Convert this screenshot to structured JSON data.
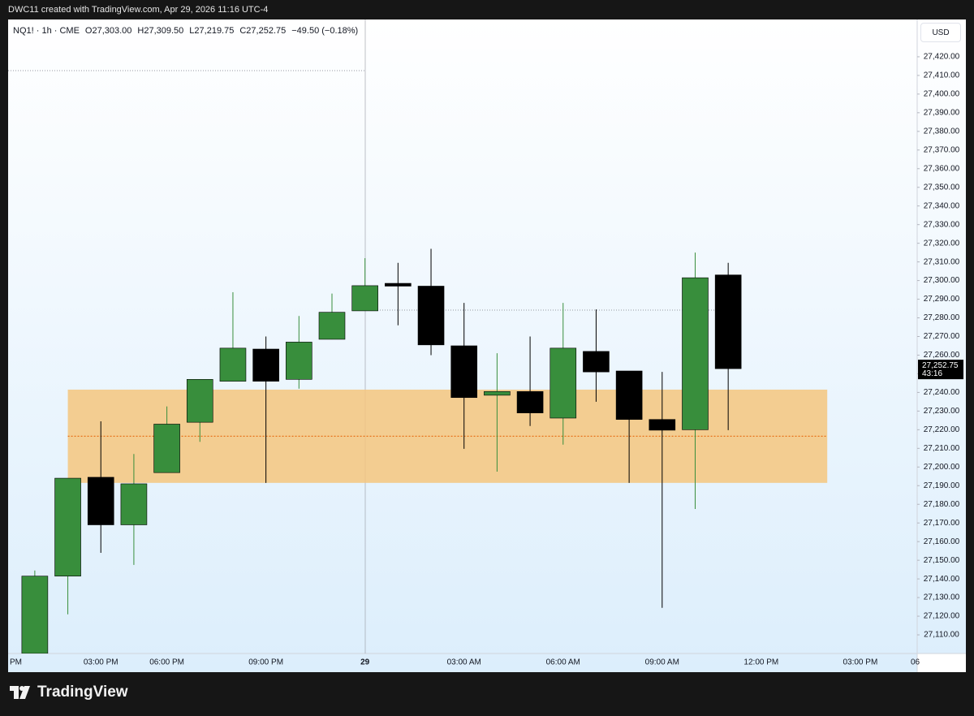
{
  "header": {
    "caption": "DWC11 created with TradingView.com, Apr 29, 2026 11:16 UTC-4"
  },
  "footer": {
    "brand": "TradingView"
  },
  "chart_data": {
    "type": "candlestick",
    "symbol": "NQ1! · 1h · CME",
    "legend_values": [
      "O27,303.00",
      "H27,309.50",
      "L27,219.75",
      "C27,252.75",
      "−49.50 (−0.18%)"
    ],
    "currency": "USD",
    "categories": [
      "PM",
      null,
      null,
      "03:00 PM",
      null,
      "06:00 PM",
      null,
      null,
      "09:00 PM",
      null,
      null,
      "29",
      null,
      null,
      "03:00 AM",
      null,
      null,
      "06:00 AM",
      null,
      null,
      "09:00 AM",
      null,
      null,
      "12:00 PM",
      null,
      null,
      "03:00 PM",
      null,
      "06"
    ],
    "series": [
      {
        "up_color": "#388e3c",
        "down_color": "#000000",
        "open": [
          null,
          27100,
          27141.5,
          27194.5,
          27169,
          27197,
          27224,
          27246,
          27263.25,
          27247,
          27268.5,
          27283.75,
          27298.5,
          27297,
          27265,
          27238.5,
          27240.5,
          27226.25,
          27262,
          27251.5,
          27225.5,
          27220,
          27303,
          null,
          null,
          null,
          null,
          null,
          null
        ],
        "high": [
          null,
          27144.5,
          27194,
          27224.5,
          27207,
          27232.5,
          27247,
          27293.75,
          27270,
          27281,
          27293,
          27312,
          27309.5,
          27317,
          27288,
          27261,
          27270,
          27288,
          27284.5,
          27251.5,
          27251,
          27315,
          27309.5,
          null,
          null,
          null,
          null,
          null,
          null
        ],
        "low": [
          null,
          27100,
          27121,
          27154,
          27147.5,
          27197,
          27213.5,
          27246,
          27191.5,
          27242,
          27268.5,
          27283.75,
          27276,
          27260,
          27209.75,
          27197.5,
          27222,
          27212,
          27235,
          27191.5,
          27124.5,
          27177.5,
          27219.75,
          null,
          null,
          null,
          null,
          null,
          null
        ],
        "close": [
          null,
          27141.5,
          27194,
          27169,
          27191,
          27223,
          27247,
          27263.75,
          27246,
          27267,
          27283,
          27297.25,
          27297,
          27265.5,
          27237.25,
          27240.5,
          27229,
          27263.75,
          27251,
          27225.5,
          27219.75,
          27301.5,
          27252.75,
          null,
          null,
          null,
          null,
          null,
          null
        ]
      }
    ],
    "zone": {
      "top": 27241.5,
      "bottom": 27191.5,
      "mid": 27216.5,
      "start": 2,
      "end": 25,
      "color": "#f5c57e",
      "line_color": "#e8741c"
    },
    "last_price": {
      "value": 27252.75,
      "label": "27,252.75",
      "countdown": "43:16"
    },
    "ylim": [
      27100,
      27440
    ],
    "yticks": [
      {
        "value": 27110,
        "label": "27,110.00"
      },
      {
        "value": 27120,
        "label": "27,120.00"
      },
      {
        "value": 27130,
        "label": "27,130.00"
      },
      {
        "value": 27140,
        "label": "27,140.00"
      },
      {
        "value": 27150,
        "label": "27,150.00"
      },
      {
        "value": 27160,
        "label": "27,160.00"
      },
      {
        "value": 27170,
        "label": "27,170.00"
      },
      {
        "value": 27180,
        "label": "27,180.00"
      },
      {
        "value": 27190,
        "label": "27,190.00"
      },
      {
        "value": 27200,
        "label": "27,200.00"
      },
      {
        "value": 27210,
        "label": "27,210.00"
      },
      {
        "value": 27220,
        "label": "27,220.00"
      },
      {
        "value": 27230,
        "label": "27,230.00"
      },
      {
        "value": 27240,
        "label": "27,240.00"
      },
      {
        "value": 27250,
        "label": "27,250.00"
      },
      {
        "value": 27260,
        "label": "27,260.00"
      },
      {
        "value": 27270,
        "label": "27,270.00"
      },
      {
        "value": 27280,
        "label": "27,280.00"
      },
      {
        "value": 27290,
        "label": "27,290.00"
      },
      {
        "value": 27300,
        "label": "27,300.00"
      },
      {
        "value": 27310,
        "label": "27,310.00"
      },
      {
        "value": 27320,
        "label": "27,320.00"
      },
      {
        "value": 27330,
        "label": "27,330.00"
      },
      {
        "value": 27340,
        "label": "27,340.00"
      },
      {
        "value": 27350,
        "label": "27,350.00"
      },
      {
        "value": 27360,
        "label": "27,360.00"
      },
      {
        "value": 27370,
        "label": "27,370.00"
      },
      {
        "value": 27380,
        "label": "27,380.00"
      },
      {
        "value": 27390,
        "label": "27,390.00"
      },
      {
        "value": 27400,
        "label": "27,400.00"
      },
      {
        "value": 27410,
        "label": "27,410.00"
      },
      {
        "value": 27420,
        "label": "27,420.00"
      }
    ]
  }
}
